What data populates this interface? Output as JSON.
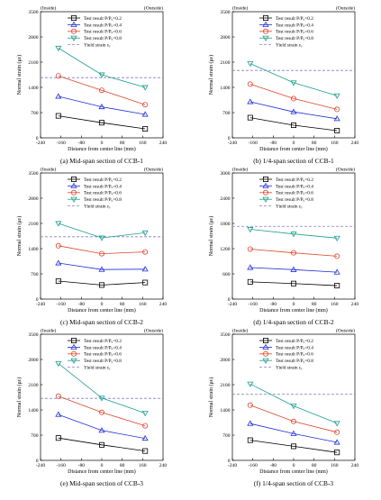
{
  "figure": {
    "panels_per_row": 2,
    "y_axis_label": "Normal strain (με)",
    "x_axis_label": "Distance from center line (mm)",
    "inside_label": "(Inside)",
    "outside_label": "(Outside)"
  },
  "legend_labels": [
    "Test result P/Pᵤ=0.2",
    "Test result P/Pᵤ=0.4",
    "Test result P/Pᵤ=0.6",
    "Test result P/Pᵤ=0.8",
    "Yield strain εᵧ"
  ],
  "series_style": [
    {
      "color": "#000000",
      "marker": "square"
    },
    {
      "color": "#1f2fd6",
      "marker": "triangle-up"
    },
    {
      "color": "#e0442a",
      "marker": "circle"
    },
    {
      "color": "#1a9e8f",
      "marker": "triangle-down"
    }
  ],
  "yield_style": {
    "color": "#8a7bc9",
    "dash": true
  },
  "chart_data": [
    {
      "type": "line",
      "caption": "(a) Mid-span section of CCB-1",
      "xlabel": "Distance from center line (mm)",
      "ylabel": "Normal strain (με)",
      "xlim": [
        -240,
        240
      ],
      "ylim": [
        0,
        3500
      ],
      "xticks": [
        -240,
        -160,
        -80,
        0,
        80,
        160,
        240
      ],
      "yticks": [
        0,
        700,
        1400,
        2100,
        2800,
        3500
      ],
      "x": [
        -170,
        0,
        170
      ],
      "series": [
        {
          "name": "Test result P/Pᵤ=0.2",
          "values": [
            610,
            420,
            250
          ]
        },
        {
          "name": "Test result P/Pᵤ=0.4",
          "values": [
            1150,
            860,
            650
          ]
        },
        {
          "name": "Test result P/Pᵤ=0.6",
          "values": [
            1720,
            1320,
            920
          ]
        },
        {
          "name": "Test result P/Pᵤ=0.8",
          "values": [
            2490,
            1750,
            1400
          ]
        }
      ],
      "yield_strain": 1670
    },
    {
      "type": "line",
      "caption": "(b) 1/4-span section of CCB-1",
      "xlabel": "Distance from center line (mm)",
      "ylabel": "Normal strain (με)",
      "xlim": [
        -240,
        240
      ],
      "ylim": [
        0,
        3500
      ],
      "xticks": [
        -240,
        -160,
        -80,
        0,
        80,
        160,
        240
      ],
      "yticks": [
        0,
        700,
        1400,
        2100,
        2800,
        3500
      ],
      "x": [
        -170,
        0,
        170
      ],
      "series": [
        {
          "name": "Test result P/Pᵤ=0.2",
          "values": [
            560,
            350,
            200
          ]
        },
        {
          "name": "Test result P/Pᵤ=0.4",
          "values": [
            1000,
            720,
            530
          ]
        },
        {
          "name": "Test result P/Pᵤ=0.6",
          "values": [
            1490,
            1090,
            790
          ]
        },
        {
          "name": "Test result P/Pᵤ=0.8",
          "values": [
            2060,
            1530,
            1170
          ]
        }
      ],
      "yield_strain": 1870
    },
    {
      "type": "line",
      "caption": "(c) Mid-span section of CCB-2",
      "xlabel": "Distance from center line (mm)",
      "ylabel": "Normal strain (με)",
      "xlim": [
        -240,
        240
      ],
      "ylim": [
        0,
        3500
      ],
      "xticks": [
        -240,
        -160,
        -80,
        0,
        80,
        160,
        240
      ],
      "yticks": [
        0,
        700,
        1400,
        2100,
        2800,
        3500
      ],
      "x": [
        -170,
        0,
        170
      ],
      "series": [
        {
          "name": "Test result P/Pᵤ=0.2",
          "values": [
            500,
            390,
            460
          ]
        },
        {
          "name": "Test result P/Pᵤ=0.4",
          "values": [
            1000,
            820,
            830
          ]
        },
        {
          "name": "Test result P/Pᵤ=0.6",
          "values": [
            1480,
            1260,
            1310
          ]
        },
        {
          "name": "Test result P/Pᵤ=0.8",
          "values": [
            2100,
            1700,
            1840
          ]
        }
      ],
      "yield_strain": 1730
    },
    {
      "type": "line",
      "caption": "(d) 1/4-span section of CCB-2",
      "xlabel": "Distance from center line (mm)",
      "ylabel": "Normal strain (με)",
      "xlim": [
        -240,
        240
      ],
      "ylim": [
        0,
        3000
      ],
      "xticks": [
        -240,
        -160,
        -80,
        0,
        80,
        160,
        240
      ],
      "yticks": [
        0,
        600,
        1200,
        1800,
        2400,
        3000
      ],
      "x": [
        -170,
        0,
        170
      ],
      "series": [
        {
          "name": "Test result P/Pᵤ=0.2",
          "values": [
            410,
            370,
            320
          ]
        },
        {
          "name": "Test result P/Pᵤ=0.4",
          "values": [
            750,
            700,
            640
          ]
        },
        {
          "name": "Test result P/Pᵤ=0.6",
          "values": [
            1190,
            1100,
            1020
          ]
        },
        {
          "name": "Test result P/Pᵤ=0.8",
          "values": [
            1660,
            1550,
            1450
          ]
        }
      ],
      "yield_strain": 1730
    },
    {
      "type": "line",
      "caption": "(e) Mid-span section of CCB-3",
      "xlabel": "Distance from center line (mm)",
      "ylabel": "Normal strain (με)",
      "xlim": [
        -240,
        240
      ],
      "ylim": [
        0,
        3500
      ],
      "xticks": [
        -240,
        -160,
        -80,
        0,
        80,
        160,
        240
      ],
      "yticks": [
        0,
        700,
        1400,
        2100,
        2800,
        3500
      ],
      "x": [
        -170,
        0,
        170
      ],
      "series": [
        {
          "name": "Test result P/Pᵤ=0.2",
          "values": [
            620,
            430,
            260
          ]
        },
        {
          "name": "Test result P/Pᵤ=0.4",
          "values": [
            1270,
            830,
            610
          ]
        },
        {
          "name": "Test result P/Pᵤ=0.6",
          "values": [
            1780,
            1330,
            960
          ]
        },
        {
          "name": "Test result P/Pᵤ=0.8",
          "values": [
            2690,
            1730,
            1310
          ]
        }
      ],
      "yield_strain": 1720
    },
    {
      "type": "line",
      "caption": "(f) 1/4-span section of CCB-3",
      "xlabel": "Distance from center line (mm)",
      "ylabel": "Normal strain (με)",
      "xlim": [
        -240,
        240
      ],
      "ylim": [
        0,
        3500
      ],
      "xticks": [
        -240,
        -160,
        -80,
        0,
        80,
        160,
        240
      ],
      "yticks": [
        0,
        700,
        1400,
        2100,
        2800,
        3500
      ],
      "x": [
        -170,
        0,
        170
      ],
      "series": [
        {
          "name": "Test result P/Pᵤ=0.2",
          "values": [
            560,
            390,
            220
          ]
        },
        {
          "name": "Test result P/Pᵤ=0.4",
          "values": [
            1020,
            740,
            500
          ]
        },
        {
          "name": "Test result P/Pᵤ=0.6",
          "values": [
            1530,
            1080,
            780
          ]
        },
        {
          "name": "Test result P/Pᵤ=0.8",
          "values": [
            2120,
            1510,
            1030
          ]
        }
      ],
      "yield_strain": 1840
    }
  ]
}
